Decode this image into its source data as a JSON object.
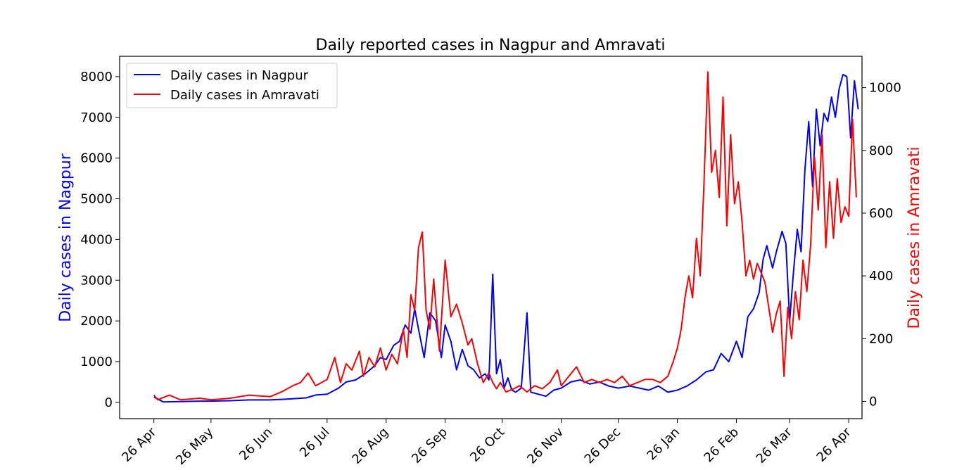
{
  "chart_data": {
    "type": "line",
    "title": "Daily reported cases in Nagpur and Amravati",
    "xlabel": "",
    "ylabel_left": "Daily cases in Nagpur",
    "ylabel_right": "Daily cases in Amravati",
    "x_ticks": [
      "26 Apr",
      "26 May",
      "26 Jun",
      "26 Jul",
      "26 Aug",
      "26 Sep",
      "26 Oct",
      "26 Nov",
      "26 Dec",
      "26 Jan",
      "26 Feb",
      "26 Mar",
      "26 Apr"
    ],
    "y_left_ticks": [
      0,
      1000,
      2000,
      3000,
      4000,
      5000,
      6000,
      7000,
      8000
    ],
    "y_right_ticks": [
      0,
      200,
      400,
      600,
      800,
      1000
    ],
    "ylim_left": [
      -400,
      8500
    ],
    "ylim_right": [
      -55,
      1100
    ],
    "xlim": [
      "2020-04-08",
      "2021-05-03"
    ],
    "grid": false,
    "legend_position": "top-left",
    "colors": {
      "nagpur": "#0000ff",
      "amravati": "#ff0000"
    },
    "series": [
      {
        "name": "Daily cases in Nagpur",
        "axis": "left",
        "color": "#0000ff",
        "points": [
          [
            "2020-04-26",
            130
          ],
          [
            "2020-05-01",
            10
          ],
          [
            "2020-05-10",
            20
          ],
          [
            "2020-05-20",
            30
          ],
          [
            "2020-05-26",
            30
          ],
          [
            "2020-06-05",
            40
          ],
          [
            "2020-06-15",
            60
          ],
          [
            "2020-06-26",
            60
          ],
          [
            "2020-07-05",
            80
          ],
          [
            "2020-07-15",
            110
          ],
          [
            "2020-07-20",
            180
          ],
          [
            "2020-07-26",
            200
          ],
          [
            "2020-08-01",
            350
          ],
          [
            "2020-08-05",
            500
          ],
          [
            "2020-08-10",
            550
          ],
          [
            "2020-08-15",
            700
          ],
          [
            "2020-08-20",
            900
          ],
          [
            "2020-08-23",
            1100
          ],
          [
            "2020-08-26",
            1050
          ],
          [
            "2020-08-30",
            1400
          ],
          [
            "2020-09-02",
            1500
          ],
          [
            "2020-09-05",
            1900
          ],
          [
            "2020-09-08",
            1700
          ],
          [
            "2020-09-10",
            2300
          ],
          [
            "2020-09-12",
            1800
          ],
          [
            "2020-09-15",
            1100
          ],
          [
            "2020-09-18",
            2200
          ],
          [
            "2020-09-21",
            2000
          ],
          [
            "2020-09-24",
            1100
          ],
          [
            "2020-09-26",
            1900
          ],
          [
            "2020-09-29",
            1500
          ],
          [
            "2020-10-02",
            800
          ],
          [
            "2020-10-05",
            1300
          ],
          [
            "2020-10-08",
            900
          ],
          [
            "2020-10-11",
            800
          ],
          [
            "2020-10-14",
            600
          ],
          [
            "2020-10-17",
            700
          ],
          [
            "2020-10-19",
            550
          ],
          [
            "2020-10-21",
            3150
          ],
          [
            "2020-10-23",
            700
          ],
          [
            "2020-10-25",
            1050
          ],
          [
            "2020-10-27",
            350
          ],
          [
            "2020-10-29",
            600
          ],
          [
            "2020-10-31",
            300
          ],
          [
            "2020-11-02",
            250
          ],
          [
            "2020-11-05",
            350
          ],
          [
            "2020-11-08",
            2200
          ],
          [
            "2020-11-10",
            250
          ],
          [
            "2020-11-14",
            200
          ],
          [
            "2020-11-18",
            150
          ],
          [
            "2020-11-22",
            300
          ],
          [
            "2020-11-26",
            350
          ],
          [
            "2020-12-01",
            500
          ],
          [
            "2020-12-06",
            550
          ],
          [
            "2020-12-11",
            450
          ],
          [
            "2020-12-16",
            500
          ],
          [
            "2020-12-21",
            400
          ],
          [
            "2020-12-26",
            350
          ],
          [
            "2021-01-01",
            400
          ],
          [
            "2021-01-06",
            350
          ],
          [
            "2021-01-11",
            300
          ],
          [
            "2021-01-16",
            400
          ],
          [
            "2021-01-21",
            250
          ],
          [
            "2021-01-26",
            300
          ],
          [
            "2021-01-31",
            400
          ],
          [
            "2021-02-05",
            550
          ],
          [
            "2021-02-10",
            750
          ],
          [
            "2021-02-14",
            800
          ],
          [
            "2021-02-18",
            1200
          ],
          [
            "2021-02-22",
            1000
          ],
          [
            "2021-02-26",
            1500
          ],
          [
            "2021-03-01",
            1100
          ],
          [
            "2021-03-04",
            2100
          ],
          [
            "2021-03-07",
            2300
          ],
          [
            "2021-03-10",
            2700
          ],
          [
            "2021-03-12",
            3500
          ],
          [
            "2021-03-14",
            3850
          ],
          [
            "2021-03-17",
            3300
          ],
          [
            "2021-03-19",
            3700
          ],
          [
            "2021-03-22",
            4200
          ],
          [
            "2021-03-24",
            3900
          ],
          [
            "2021-03-26",
            2000
          ],
          [
            "2021-03-28",
            3200
          ],
          [
            "2021-03-30",
            4250
          ],
          [
            "2021-04-01",
            3700
          ],
          [
            "2021-04-03",
            5700
          ],
          [
            "2021-04-05",
            6900
          ],
          [
            "2021-04-07",
            5300
          ],
          [
            "2021-04-09",
            7200
          ],
          [
            "2021-04-11",
            6300
          ],
          [
            "2021-04-13",
            7100
          ],
          [
            "2021-04-15",
            6900
          ],
          [
            "2021-04-17",
            7500
          ],
          [
            "2021-04-19",
            7000
          ],
          [
            "2021-04-21",
            7700
          ],
          [
            "2021-04-23",
            8050
          ],
          [
            "2021-04-25",
            8000
          ],
          [
            "2021-04-27",
            6500
          ],
          [
            "2021-04-29",
            7900
          ],
          [
            "2021-05-01",
            7200
          ]
        ]
      },
      {
        "name": "Daily cases in Amravati",
        "axis": "right",
        "color": "#ff0000",
        "points": [
          [
            "2020-04-26",
            20
          ],
          [
            "2020-04-28",
            5
          ],
          [
            "2020-05-04",
            20
          ],
          [
            "2020-05-10",
            5
          ],
          [
            "2020-05-20",
            10
          ],
          [
            "2020-05-26",
            5
          ],
          [
            "2020-06-05",
            10
          ],
          [
            "2020-06-15",
            20
          ],
          [
            "2020-06-26",
            15
          ],
          [
            "2020-07-02",
            30
          ],
          [
            "2020-07-08",
            50
          ],
          [
            "2020-07-12",
            60
          ],
          [
            "2020-07-16",
            90
          ],
          [
            "2020-07-20",
            50
          ],
          [
            "2020-07-26",
            70
          ],
          [
            "2020-07-30",
            140
          ],
          [
            "2020-08-02",
            60
          ],
          [
            "2020-08-05",
            120
          ],
          [
            "2020-08-08",
            100
          ],
          [
            "2020-08-12",
            160
          ],
          [
            "2020-08-14",
            80
          ],
          [
            "2020-08-17",
            140
          ],
          [
            "2020-08-20",
            110
          ],
          [
            "2020-08-23",
            170
          ],
          [
            "2020-08-26",
            100
          ],
          [
            "2020-08-29",
            150
          ],
          [
            "2020-09-01",
            120
          ],
          [
            "2020-09-04",
            230
          ],
          [
            "2020-09-06",
            140
          ],
          [
            "2020-09-08",
            340
          ],
          [
            "2020-09-10",
            290
          ],
          [
            "2020-09-12",
            490
          ],
          [
            "2020-09-14",
            540
          ],
          [
            "2020-09-16",
            290
          ],
          [
            "2020-09-18",
            230
          ],
          [
            "2020-09-20",
            390
          ],
          [
            "2020-09-23",
            160
          ],
          [
            "2020-09-26",
            450
          ],
          [
            "2020-09-29",
            270
          ],
          [
            "2020-10-02",
            310
          ],
          [
            "2020-10-05",
            250
          ],
          [
            "2020-10-08",
            180
          ],
          [
            "2020-10-10",
            200
          ],
          [
            "2020-10-13",
            120
          ],
          [
            "2020-10-16",
            60
          ],
          [
            "2020-10-19",
            90
          ],
          [
            "2020-10-21",
            60
          ],
          [
            "2020-10-23",
            40
          ],
          [
            "2020-10-25",
            60
          ],
          [
            "2020-10-28",
            30
          ],
          [
            "2020-11-01",
            40
          ],
          [
            "2020-11-04",
            50
          ],
          [
            "2020-11-08",
            30
          ],
          [
            "2020-11-12",
            50
          ],
          [
            "2020-11-16",
            40
          ],
          [
            "2020-11-20",
            60
          ],
          [
            "2020-11-24",
            100
          ],
          [
            "2020-11-26",
            50
          ],
          [
            "2020-11-30",
            80
          ],
          [
            "2020-12-04",
            110
          ],
          [
            "2020-12-08",
            60
          ],
          [
            "2020-12-12",
            70
          ],
          [
            "2020-12-16",
            60
          ],
          [
            "2020-12-20",
            70
          ],
          [
            "2020-12-24",
            60
          ],
          [
            "2020-12-28",
            80
          ],
          [
            "2021-01-01",
            50
          ],
          [
            "2021-01-05",
            60
          ],
          [
            "2021-01-09",
            70
          ],
          [
            "2021-01-13",
            70
          ],
          [
            "2021-01-17",
            60
          ],
          [
            "2021-01-21",
            80
          ],
          [
            "2021-01-24",
            130
          ],
          [
            "2021-01-26",
            170
          ],
          [
            "2021-01-28",
            230
          ],
          [
            "2021-01-30",
            330
          ],
          [
            "2021-02-01",
            400
          ],
          [
            "2021-02-03",
            330
          ],
          [
            "2021-02-05",
            520
          ],
          [
            "2021-02-07",
            400
          ],
          [
            "2021-02-09",
            700
          ],
          [
            "2021-02-11",
            1050
          ],
          [
            "2021-02-13",
            730
          ],
          [
            "2021-02-15",
            800
          ],
          [
            "2021-02-17",
            650
          ],
          [
            "2021-02-19",
            970
          ],
          [
            "2021-02-21",
            560
          ],
          [
            "2021-02-23",
            850
          ],
          [
            "2021-02-25",
            630
          ],
          [
            "2021-02-27",
            700
          ],
          [
            "2021-03-01",
            570
          ],
          [
            "2021-03-03",
            400
          ],
          [
            "2021-03-05",
            450
          ],
          [
            "2021-03-07",
            390
          ],
          [
            "2021-03-09",
            440
          ],
          [
            "2021-03-11",
            410
          ],
          [
            "2021-03-13",
            380
          ],
          [
            "2021-03-15",
            300
          ],
          [
            "2021-03-17",
            220
          ],
          [
            "2021-03-19",
            280
          ],
          [
            "2021-03-21",
            320
          ],
          [
            "2021-03-23",
            80
          ],
          [
            "2021-03-25",
            300
          ],
          [
            "2021-03-27",
            200
          ],
          [
            "2021-03-29",
            350
          ],
          [
            "2021-03-31",
            260
          ],
          [
            "2021-04-02",
            450
          ],
          [
            "2021-04-04",
            350
          ],
          [
            "2021-04-06",
            500
          ],
          [
            "2021-04-08",
            780
          ],
          [
            "2021-04-10",
            610
          ],
          [
            "2021-04-12",
            850
          ],
          [
            "2021-04-14",
            490
          ],
          [
            "2021-04-16",
            700
          ],
          [
            "2021-04-18",
            520
          ],
          [
            "2021-04-20",
            710
          ],
          [
            "2021-04-22",
            570
          ],
          [
            "2021-04-24",
            620
          ],
          [
            "2021-04-26",
            590
          ],
          [
            "2021-04-28",
            900
          ],
          [
            "2021-04-30",
            650
          ]
        ]
      }
    ]
  }
}
